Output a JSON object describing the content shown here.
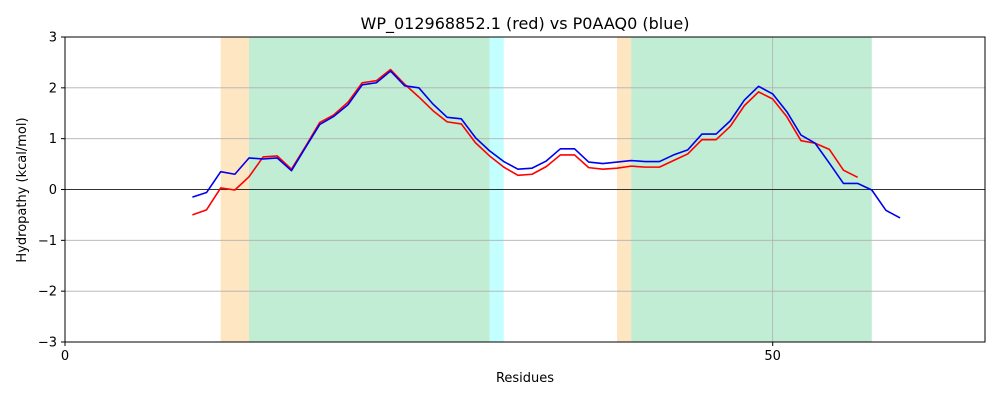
{
  "chart_data": {
    "type": "line",
    "title": "WP_012968852.1 (red) vs P0AAQ0 (blue)",
    "xlabel": "Residues",
    "ylabel": "Hydropathy (kcal/mol)",
    "xlim": [
      0,
      65
    ],
    "ylim": [
      -3,
      3
    ],
    "xticks": [
      0,
      50
    ],
    "xtick_labels": [
      "0",
      "50"
    ],
    "yticks": [
      -3,
      -2,
      -1,
      0,
      1,
      2,
      3
    ],
    "ytick_labels": [
      "−3",
      "−2",
      "−1",
      "0",
      "1",
      "2",
      "3"
    ],
    "grid": true,
    "zero_line": true,
    "regions": [
      {
        "x0": 11.0,
        "x1": 13.0,
        "color": "#ffe6c2"
      },
      {
        "x0": 13.0,
        "x1": 30.0,
        "color": "#c0edd4"
      },
      {
        "x0": 30.0,
        "x1": 31.0,
        "color": "#c4ffff"
      },
      {
        "x0": 39.0,
        "x1": 40.0,
        "color": "#ffe6c2"
      },
      {
        "x0": 40.0,
        "x1": 57.0,
        "color": "#c0edd4"
      }
    ],
    "series": [
      {
        "name": "WP_012968852.1",
        "color": "#ff0000",
        "x": [
          9,
          10,
          11,
          12,
          13,
          14,
          15,
          16,
          17,
          18,
          19,
          20,
          21,
          22,
          23,
          24,
          25,
          26,
          27,
          28,
          29,
          30,
          31,
          32,
          33,
          34,
          35,
          36,
          37,
          38,
          39,
          40,
          41,
          42,
          43,
          44,
          45,
          46,
          47,
          48,
          49,
          50,
          51,
          52,
          53,
          54,
          55,
          56
        ],
        "y": [
          -0.5,
          -0.4,
          0.03,
          -0.01,
          0.25,
          0.64,
          0.66,
          0.4,
          0.85,
          1.32,
          1.47,
          1.72,
          2.1,
          2.14,
          2.36,
          2.07,
          1.82,
          1.55,
          1.33,
          1.29,
          0.92,
          0.66,
          0.44,
          0.28,
          0.3,
          0.45,
          0.68,
          0.68,
          0.43,
          0.4,
          0.42,
          0.46,
          0.44,
          0.44,
          0.57,
          0.7,
          0.98,
          0.98,
          1.24,
          1.65,
          1.92,
          1.78,
          1.43,
          0.96,
          0.91,
          0.79,
          0.38,
          0.24
        ]
      },
      {
        "name": "P0AAQ0",
        "color": "#0000ee",
        "x": [
          9,
          10,
          11,
          12,
          13,
          14,
          15,
          16,
          17,
          18,
          19,
          20,
          21,
          22,
          23,
          24,
          25,
          26,
          27,
          28,
          29,
          30,
          31,
          32,
          33,
          34,
          35,
          36,
          37,
          38,
          39,
          40,
          41,
          42,
          43,
          44,
          45,
          46,
          47,
          48,
          49,
          50,
          51,
          52,
          53,
          54,
          55,
          56,
          57,
          58,
          59
        ],
        "y": [
          -0.15,
          -0.06,
          0.35,
          0.3,
          0.62,
          0.6,
          0.62,
          0.37,
          0.83,
          1.28,
          1.44,
          1.67,
          2.06,
          2.1,
          2.33,
          2.04,
          2.0,
          1.68,
          1.42,
          1.39,
          1.02,
          0.76,
          0.55,
          0.4,
          0.42,
          0.56,
          0.8,
          0.8,
          0.54,
          0.51,
          0.54,
          0.57,
          0.55,
          0.55,
          0.68,
          0.78,
          1.09,
          1.09,
          1.35,
          1.76,
          2.03,
          1.88,
          1.53,
          1.07,
          0.91,
          0.52,
          0.12,
          0.12,
          -0.01,
          -0.41,
          -0.56
        ]
      }
    ]
  }
}
